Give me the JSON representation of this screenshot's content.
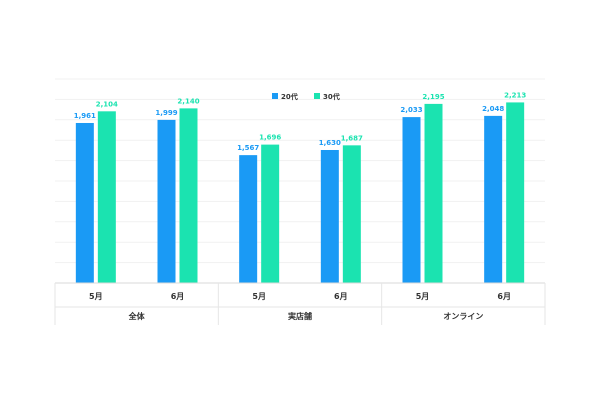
{
  "chart_data": {
    "type": "bar",
    "title": "",
    "xlabel": "",
    "ylabel": "",
    "ylim": [
      0,
      2500
    ],
    "grid": true,
    "legend_position": "top-center",
    "groups": [
      {
        "label": "全体",
        "categories": [
          "5月",
          "6月"
        ]
      },
      {
        "label": "実店舗",
        "categories": [
          "5月",
          "6月"
        ]
      },
      {
        "label": "オンライン",
        "categories": [
          "5月",
          "6月"
        ]
      }
    ],
    "series": [
      {
        "name": "20代",
        "color": "#1a9af5",
        "values": [
          1961,
          1999,
          1567,
          1630,
          2033,
          2048
        ],
        "labels": [
          "1,961",
          "1,999",
          "1,567",
          "1,630",
          "2,033",
          "2,048"
        ]
      },
      {
        "name": "30代",
        "color": "#1be3b0",
        "values": [
          2104,
          2140,
          1696,
          1687,
          2195,
          2213
        ],
        "labels": [
          "2,104",
          "2,140",
          "1,696",
          "1,687",
          "2,195",
          "2,213"
        ]
      }
    ]
  }
}
